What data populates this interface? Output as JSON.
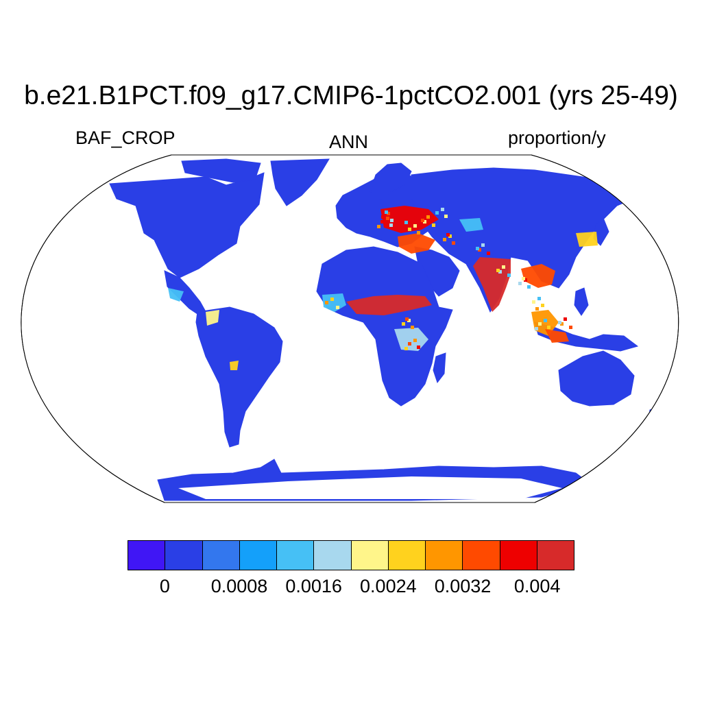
{
  "title": "b.e21.B1PCT.f09_g17.CMIP6-1pctCO2.001 (yrs 25-49)",
  "subtitle_left": "BAF_CROP",
  "subtitle_center": "ANN",
  "subtitle_right": "proportion/y",
  "map": {
    "projection": "Robinson",
    "variable": "BAF_CROP",
    "period": "ANN",
    "units": "proportion/y",
    "ocean_color": "#ffffff",
    "land_base_color": "#2a3fe6",
    "high_value_regions": [
      "India",
      "Sahel",
      "Europe",
      "Eastern China",
      "Southeast Asia"
    ]
  },
  "legend": {
    "colors": [
      "#4016f5",
      "#2a3fe6",
      "#3377ee",
      "#14a0fa",
      "#46c0f5",
      "#a8d8ee",
      "#fff58a",
      "#ffd21e",
      "#ff9600",
      "#ff4a00",
      "#ee0000",
      "#d72a2a"
    ],
    "tick_labels": [
      {
        "text": "0",
        "boundary": 1
      },
      {
        "text": "0.0008",
        "boundary": 3
      },
      {
        "text": "0.0016",
        "boundary": 5
      },
      {
        "text": "0.0024",
        "boundary": 7
      },
      {
        "text": "0.0032",
        "boundary": 9
      },
      {
        "text": "0.004",
        "boundary": 11
      }
    ]
  }
}
